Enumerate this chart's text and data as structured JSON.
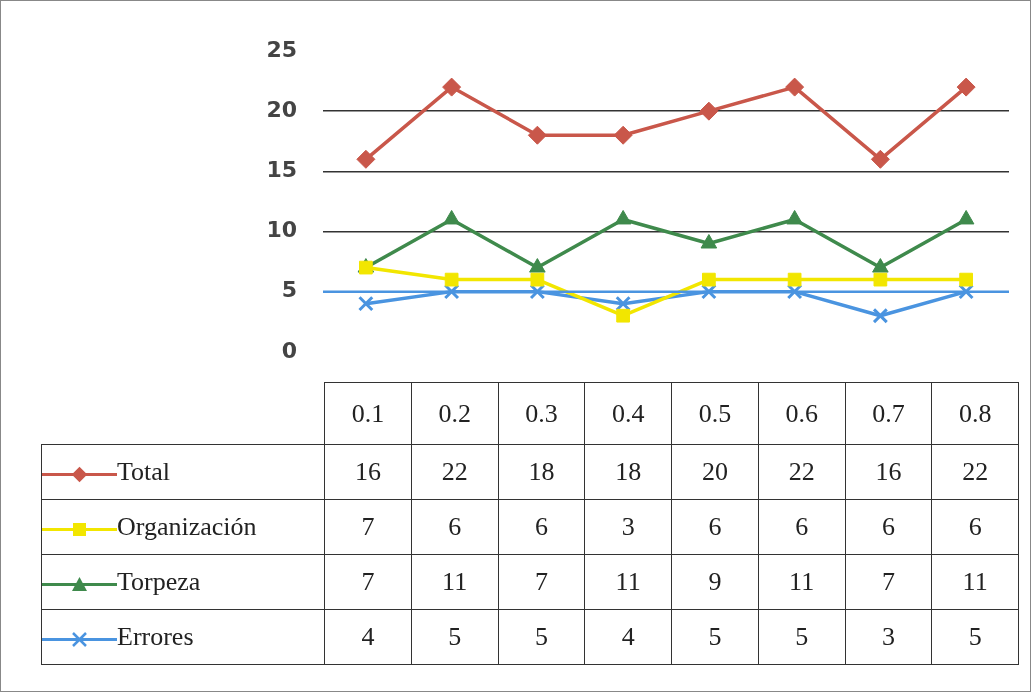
{
  "chart_data": {
    "type": "line",
    "categories": [
      "0.1",
      "0.2",
      "0.3",
      "0.4",
      "0.5",
      "0.6",
      "0.7",
      "0.8"
    ],
    "series": [
      {
        "name": "Total",
        "color": "#c9574a",
        "marker": "diamond",
        "values": [
          16,
          22,
          18,
          18,
          20,
          22,
          16,
          22
        ]
      },
      {
        "name": "Organización",
        "color": "#f2e600",
        "marker": "square",
        "values": [
          7,
          6,
          6,
          3,
          6,
          6,
          6,
          6
        ]
      },
      {
        "name": "Torpeza",
        "color": "#3f8a4c",
        "marker": "triangle",
        "values": [
          7,
          11,
          7,
          11,
          9,
          11,
          7,
          11
        ]
      },
      {
        "name": "Errores",
        "color": "#4a94e0",
        "marker": "cross",
        "values": [
          4,
          5,
          5,
          4,
          5,
          5,
          3,
          5
        ]
      }
    ],
    "ylim": [
      0,
      25
    ],
    "yticks": [
      0,
      5,
      10,
      15,
      20,
      25
    ],
    "grid": "y",
    "ref_lines": [
      {
        "axis": "y",
        "value": 5,
        "label": null,
        "color": "#4a94e0"
      }
    ],
    "data_labels": true,
    "legend": "bottom left"
  }
}
